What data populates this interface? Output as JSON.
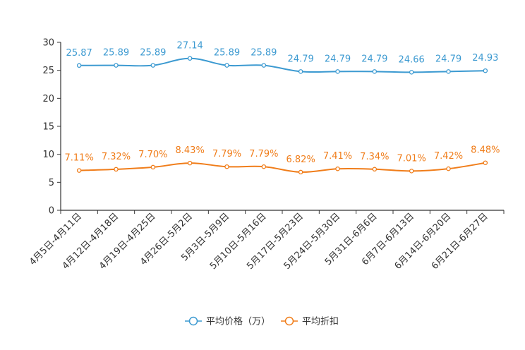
{
  "chart_data": {
    "type": "line",
    "title": "",
    "xlabel": "",
    "ylabel": "",
    "ylim": [
      0,
      30
    ],
    "yticks": [
      0,
      5,
      10,
      15,
      20,
      25,
      30
    ],
    "categories": [
      "4月5日-4月11日",
      "4月12日-4月18日",
      "4月19日-4月25日",
      "4月26日-5月2日",
      "5月3日-5月9日",
      "5月10日-5月16日",
      "5月17日-5月23日",
      "5月24日-5月30日",
      "5月31日-6月6日",
      "6月7日-6月13日",
      "6月14日-6月20日",
      "6月21日-6月27日"
    ],
    "series": [
      {
        "name": "平均价格（万）",
        "color": "#3c9ad1",
        "values": [
          25.87,
          25.89,
          25.89,
          27.14,
          25.89,
          25.89,
          24.79,
          24.79,
          24.79,
          24.66,
          24.79,
          24.93
        ],
        "labels": [
          "25.87",
          "25.89",
          "25.89",
          "27.14",
          "25.89",
          "25.89",
          "24.79",
          "24.79",
          "24.79",
          "24.66",
          "24.79",
          "24.93"
        ]
      },
      {
        "name": "平均折扣",
        "color": "#f07d1a",
        "values": [
          7.11,
          7.32,
          7.7,
          8.43,
          7.79,
          7.79,
          6.82,
          7.41,
          7.34,
          7.01,
          7.42,
          8.48
        ],
        "labels": [
          "7.11%",
          "7.32%",
          "7.70%",
          "8.43%",
          "7.79%",
          "7.79%",
          "6.82%",
          "7.41%",
          "7.34%",
          "7.01%",
          "7.42%",
          "8.48%"
        ]
      }
    ],
    "legend_position": "bottom-center"
  }
}
